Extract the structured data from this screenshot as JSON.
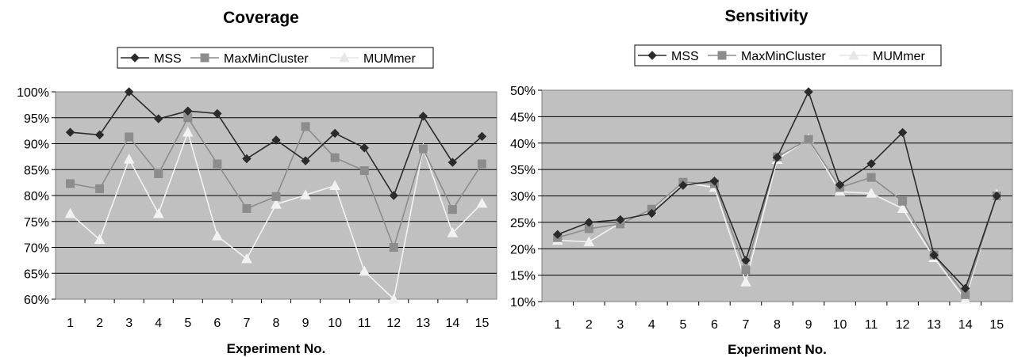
{
  "chart_data": [
    {
      "type": "line",
      "title": "Coverage",
      "xlabel": "Experiment No.",
      "ylabel": "",
      "categories": [
        "1",
        "2",
        "3",
        "4",
        "5",
        "6",
        "7",
        "8",
        "9",
        "10",
        "11",
        "12",
        "13",
        "14",
        "15"
      ],
      "y_ticks": [
        "60%",
        "65%",
        "70%",
        "75%",
        "80%",
        "85%",
        "90%",
        "95%",
        "100%"
      ],
      "ylim": [
        60,
        100
      ],
      "grid": true,
      "legend_placement": "top",
      "series": [
        {
          "name": "MSS",
          "color": "#2b2b2b",
          "marker": "diamond",
          "values": [
            92.2,
            91.7,
            100,
            94.8,
            96.3,
            95.8,
            87.1,
            90.7,
            86.7,
            92.0,
            89.2,
            80.0,
            95.3,
            86.4,
            91.4
          ]
        },
        {
          "name": "MaxMinCluster",
          "color": "#8c8c8c",
          "marker": "square",
          "values": [
            82.3,
            81.3,
            91.3,
            84.2,
            95.0,
            86.1,
            77.5,
            79.8,
            93.3,
            87.3,
            84.8,
            70.0,
            89.0,
            77.3,
            86.1
          ]
        },
        {
          "name": "MUMmer",
          "color": "#f2f2f2",
          "marker": "triangle",
          "values": [
            76.5,
            71.5,
            87.0,
            76.5,
            92.2,
            72.2,
            67.8,
            78.3,
            80.1,
            81.9,
            65.4,
            60.0,
            89.1,
            72.8,
            78.5
          ]
        }
      ]
    },
    {
      "type": "line",
      "title": "Sensitivity",
      "xlabel": "Experiment No.",
      "ylabel": "",
      "categories": [
        "1",
        "2",
        "3",
        "4",
        "5",
        "6",
        "7",
        "8",
        "9",
        "10",
        "11",
        "12",
        "13",
        "14",
        "15"
      ],
      "y_ticks": [
        "10%",
        "15%",
        "20%",
        "25%",
        "30%",
        "35%",
        "40%",
        "45%",
        "50%"
      ],
      "ylim": [
        10,
        50
      ],
      "grid": true,
      "legend_placement": "top",
      "series": [
        {
          "name": "MSS",
          "color": "#2b2b2b",
          "marker": "diamond",
          "values": [
            22.7,
            25.0,
            25.5,
            26.7,
            32.0,
            32.8,
            17.8,
            37.3,
            49.7,
            32.1,
            36.1,
            42.0,
            18.8,
            12.5,
            30.0
          ]
        },
        {
          "name": "MaxMinCluster",
          "color": "#8c8c8c",
          "marker": "square",
          "values": [
            22.1,
            23.8,
            24.7,
            27.5,
            32.6,
            32.3,
            16.0,
            37.4,
            40.7,
            31.6,
            33.5,
            29.0,
            18.8,
            11.3,
            30.0
          ]
        },
        {
          "name": "MUMmer",
          "color": "#f2f2f2",
          "marker": "triangle",
          "values": [
            21.6,
            21.3,
            24.9,
            27.3,
            32.5,
            31.6,
            13.7,
            36.9,
            40.8,
            30.8,
            30.5,
            27.6,
            18.3,
            10.4,
            30.3
          ]
        }
      ]
    }
  ]
}
